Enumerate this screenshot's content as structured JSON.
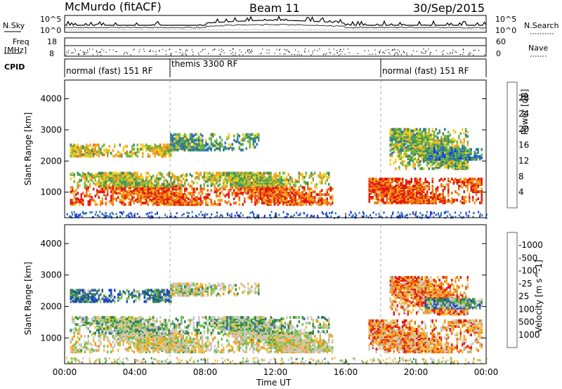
{
  "header": {
    "station": "McMurdo (fitACF)",
    "beam": "Beam 11",
    "date": "30/Sep/2015"
  },
  "strip": {
    "nsky_label": "N.Sky",
    "nsearch_label": "N.Search",
    "nsky_ticks": [
      "10^5",
      "10^0"
    ],
    "nsearch_ticks": [
      "10^5",
      "10^0"
    ],
    "freq_label": "Freq",
    "freq_unit": "[MHz]",
    "freq_ticks": [
      "18",
      "8"
    ],
    "nave_label": "Nave",
    "nave_ticks": [
      "60",
      "0"
    ],
    "cpid_label": "CPID",
    "cpid_segments": [
      {
        "label": "normal (fast) 151 RF",
        "start_hour": 0,
        "end_hour": 6
      },
      {
        "label": "themis 3300 RF",
        "start_hour": 6,
        "end_hour": 18
      },
      {
        "label": "normal (fast) 151 RF",
        "start_hour": 18,
        "end_hour": 24
      }
    ]
  },
  "chart_data": [
    {
      "type": "heatmap",
      "name": "power-panel",
      "ylabel": "Slant Range [km]",
      "yticks": [
        "1000",
        "2000",
        "3000",
        "4000"
      ],
      "ylim": [
        180,
        4600
      ],
      "xlim": [
        0,
        24
      ],
      "colorbar_label": "Power [dB]",
      "colorbar_ticks": [
        "4",
        "8",
        "12",
        "16",
        "20",
        "24",
        "28"
      ],
      "colorbar_colors": [
        "#1433ee",
        "#2a6fbf",
        "#3e8f5a",
        "#6bb44a",
        "#f0d020",
        "#f2a020",
        "#f26a10",
        "#e21a10"
      ],
      "bands": [
        {
          "range_km": [
            650,
            1250
          ],
          "t": [
            0.3,
            15.2
          ],
          "level": 0.82
        },
        {
          "range_km": [
            1250,
            1700
          ],
          "t": [
            0.3,
            15.0
          ],
          "level": 0.5
        },
        {
          "range_km": [
            2200,
            2600
          ],
          "t": [
            0.3,
            6.0
          ],
          "level": 0.55
        },
        {
          "range_km": [
            2400,
            2900
          ],
          "t": [
            6.0,
            11.0
          ],
          "level": 0.35
        },
        {
          "range_km": [
            700,
            1500
          ],
          "t": [
            17.3,
            23.8
          ],
          "level": 0.85
        },
        {
          "range_km": [
            1800,
            3100
          ],
          "t": [
            18.5,
            23.0
          ],
          "level": 0.45
        },
        {
          "range_km": [
            2100,
            2500
          ],
          "t": [
            20.5,
            23.8
          ],
          "level": 0.3
        }
      ]
    },
    {
      "type": "heatmap",
      "name": "velocity-panel",
      "ylabel": "Slant Range [km]",
      "yticks": [
        "1000",
        "2000",
        "3000",
        "4000"
      ],
      "ylim": [
        180,
        4600
      ],
      "xlim": [
        0,
        24
      ],
      "colorbar_label": "Velocity [m s^-1]",
      "colorbar_ticks": [
        "1000",
        "500",
        "100",
        "25",
        "-25",
        "-100",
        "-500",
        "-1000"
      ],
      "colorbar_colors": [
        "#1a3ed0",
        "#3c6a9a",
        "#2f8a3c",
        "#6ec24a",
        "#c8c8c8",
        "#f5c040",
        "#f59a20",
        "#f06a10",
        "#e21a10"
      ],
      "bands": [
        {
          "range_km": [
            600,
            1200
          ],
          "t": [
            0.3,
            15.2
          ],
          "level": 0.55
        },
        {
          "range_km": [
            1200,
            1700
          ],
          "t": [
            0.3,
            15.0
          ],
          "level": 0.4
        },
        {
          "range_km": [
            2200,
            2600
          ],
          "t": [
            0.3,
            6.0
          ],
          "level": 0.2
        },
        {
          "range_km": [
            2400,
            2800
          ],
          "t": [
            6.0,
            11.0
          ],
          "level": 0.5
        },
        {
          "range_km": [
            600,
            1600
          ],
          "t": [
            17.3,
            23.8
          ],
          "level": 0.75
        },
        {
          "range_km": [
            1800,
            3000
          ],
          "t": [
            18.5,
            23.0
          ],
          "level": 0.8
        },
        {
          "range_km": [
            2000,
            2300
          ],
          "t": [
            20.5,
            23.8
          ],
          "level": 0.3
        }
      ]
    }
  ],
  "xaxis": {
    "label": "Time UT",
    "ticks": [
      "00:00",
      "04:00",
      "08:00",
      "12:00",
      "16:00",
      "20:00",
      "00:00"
    ]
  }
}
